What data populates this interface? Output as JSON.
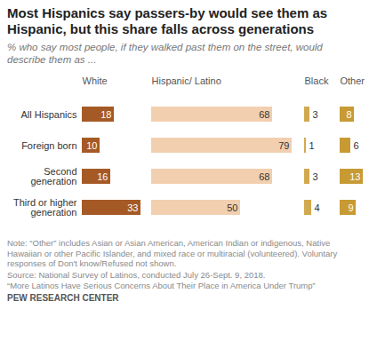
{
  "chart_data": {
    "type": "bar",
    "orientation": "horizontal",
    "title": "Most Hispanics say passers-by would see them as Hispanic, but this share falls across generations",
    "subtitle": "% who say most people, if they walked past them on the street, would describe them as ...",
    "categories": [
      "All Hispanics",
      "Foreign born",
      "Second generation",
      "Third or higher generation"
    ],
    "series": [
      {
        "name": "White",
        "color": "#a55a26",
        "values": [
          18,
          10,
          16,
          33
        ],
        "xlim": [
          0,
          33
        ]
      },
      {
        "name": "Hispanic/ Latino",
        "color": "#f2cfaf",
        "values": [
          68,
          79,
          68,
          50
        ],
        "xlim": [
          0,
          79
        ]
      },
      {
        "name": "Black",
        "color": "#d1a94e",
        "values": [
          3,
          1,
          3,
          4
        ],
        "xlim": [
          0,
          4
        ]
      },
      {
        "name": "Other",
        "color": "#c79a34",
        "values": [
          8,
          6,
          13,
          9
        ],
        "xlim": [
          0,
          13
        ]
      }
    ],
    "data_labels": true,
    "tick_labels": "y",
    "notes": [
      "Note: “Other” includes Asian or Asian American, American Indian or indigenous, Native Hawaiian or other Pacific Islander, and mixed race or multiracial (volunteered). Voluntary responses of Don't know/Refused not shown.",
      "Source: National Survey of Latinos, conducted July 26-Sept. 9, 2018.",
      "“More Latinos Have Serious Concerns About Their Place in America Under Trump”",
      "PEW RESEARCH CENTER"
    ]
  }
}
